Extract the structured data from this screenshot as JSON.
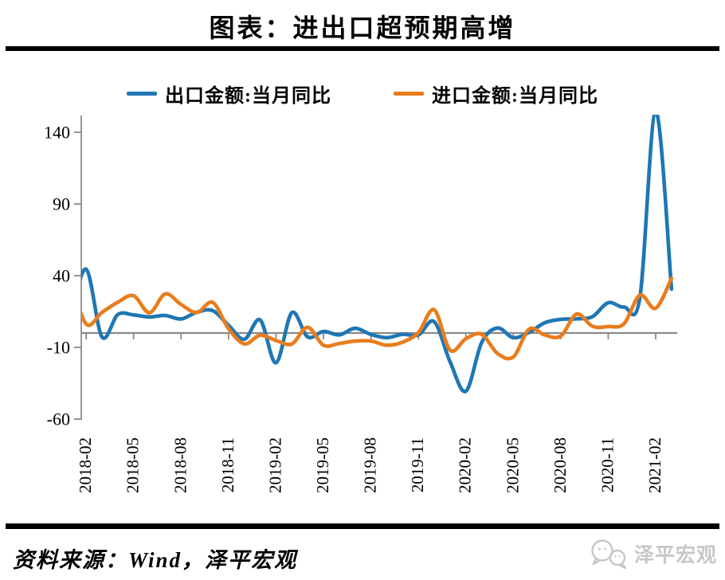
{
  "title": "图表：进出口超预期高增",
  "legend": [
    {
      "label": "出口金额:当月同比",
      "color": "#1F77B4"
    },
    {
      "label": "进口金额:当月同比",
      "color": "#E87D1E"
    }
  ],
  "source_note": "资料来源：Wind，泽平宏观",
  "watermark": {
    "text": "泽平宏观",
    "icon": "chat-bubbles-icon",
    "color": "#c7c7c7"
  },
  "chart_data": {
    "type": "line",
    "title": "图表：进出口超预期高增",
    "xlabel": "",
    "ylabel": "",
    "ylim": [
      -60,
      155
    ],
    "yticks": [
      140,
      90,
      40,
      -10,
      -60
    ],
    "grid": false,
    "legend_position": "top",
    "axis_color": "#8a8a8a",
    "zero_axis_line": true,
    "x": [
      "2018-01",
      "2018-02",
      "2018-03",
      "2018-04",
      "2018-05",
      "2018-06",
      "2018-07",
      "2018-08",
      "2018-09",
      "2018-10",
      "2018-11",
      "2018-12",
      "2019-01",
      "2019-02",
      "2019-03",
      "2019-04",
      "2019-05",
      "2019-06",
      "2019-07",
      "2019-08",
      "2019-09",
      "2019-10",
      "2019-11",
      "2019-12",
      "2020-01",
      "2020-02",
      "2020-03",
      "2020-04",
      "2020-05",
      "2020-06",
      "2020-07",
      "2020-08",
      "2020-09",
      "2020-10",
      "2020-11",
      "2020-12",
      "2021-01",
      "2021-02",
      "2021-03"
    ],
    "xtick_labels": [
      "2018-02",
      "2018-05",
      "2018-08",
      "2018-11",
      "2019-02",
      "2019-05",
      "2019-08",
      "2019-11",
      "2020-02",
      "2020-05",
      "2020-08",
      "2020-11",
      "2021-02"
    ],
    "xtick_month_indices": [
      1,
      4,
      7,
      10,
      13,
      16,
      19,
      22,
      25,
      28,
      31,
      34,
      37
    ],
    "series": [
      {
        "name": "出口金额:当月同比",
        "color": "#1F77B4",
        "values": [
          11.1,
          44.5,
          -2.7,
          12.9,
          12.6,
          11.2,
          12.2,
          9.8,
          14.5,
          15.6,
          5.4,
          -4.4,
          9.1,
          -20.8,
          14.2,
          -2.7,
          1.1,
          -1.3,
          3.3,
          -1.0,
          -3.2,
          -0.9,
          -1.3,
          7.9,
          -20.0,
          -40.6,
          -6.6,
          3.5,
          -3.3,
          0.5,
          7.2,
          9.5,
          9.9,
          11.4,
          21.1,
          18.1,
          24.8,
          154.9,
          30.6
        ]
      },
      {
        "name": "进口金额:当月同比",
        "color": "#E87D1E",
        "values": [
          36.8,
          6.3,
          14.4,
          21.5,
          26.0,
          14.1,
          27.3,
          19.9,
          14.3,
          21.4,
          3.0,
          -7.6,
          -1.5,
          -5.2,
          -7.6,
          4.0,
          -8.5,
          -7.3,
          -5.6,
          -5.6,
          -8.5,
          -6.4,
          0.3,
          16.2,
          -12.0,
          -4.0,
          -0.9,
          -14.2,
          -16.7,
          2.7,
          -1.4,
          -2.1,
          13.2,
          4.7,
          4.5,
          6.5,
          26.4,
          17.3,
          38.1
        ]
      }
    ]
  }
}
